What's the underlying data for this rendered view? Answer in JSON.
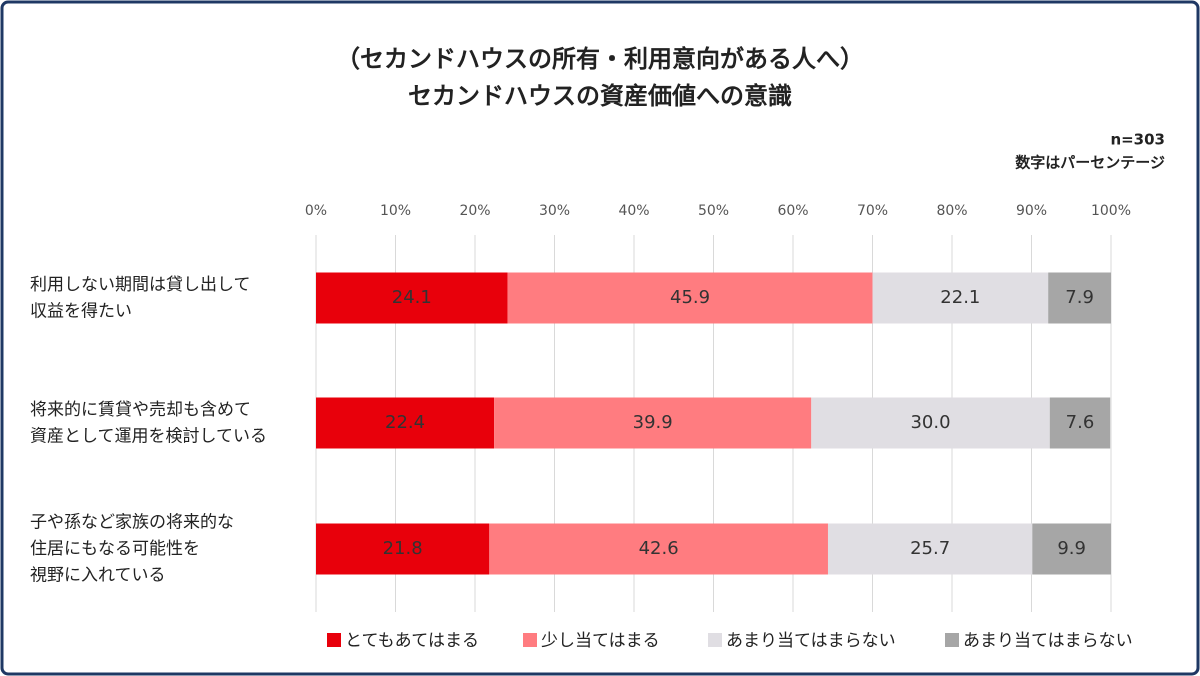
{
  "chart_data": {
    "type": "stacked-bar-horizontal",
    "title": [
      "（セカンドハウスの所有・利用意向がある人へ）",
      "セカンドハウスの資産価値への意識"
    ],
    "subtitle": [
      "n=303",
      "数字はパーセンテージ"
    ],
    "categories": [
      [
        "利用しない期間は貸し出して",
        "収益を得たい"
      ],
      [
        "将来的に賃貸や売却も含めて",
        "資産として運用を検討している"
      ],
      [
        "子や孫など家族の将来的な",
        "住居にもなる可能性を",
        "視野に入れている"
      ]
    ],
    "series": [
      {
        "name": "とてもあてはまる",
        "color": "#e8000b",
        "values": [
          24.1,
          22.4,
          21.8
        ],
        "value_labels": [
          "24.1",
          "22.4",
          "21.8"
        ]
      },
      {
        "name": "少し当てはまる",
        "color": "#ff7c80",
        "values": [
          45.9,
          39.9,
          42.6
        ],
        "value_labels": [
          "45.9",
          "39.9",
          "42.6"
        ]
      },
      {
        "name": "あまり当てはまらない",
        "color": "#e0dee3",
        "values": [
          22.1,
          30.0,
          25.7
        ],
        "value_labels": [
          "22.1",
          "30.0",
          "25.7"
        ]
      },
      {
        "name": "あまり当てはまらない",
        "color": "#a6a6a6",
        "values": [
          7.9,
          7.6,
          9.9
        ],
        "value_labels": [
          "7.9",
          "7.6",
          "9.9"
        ]
      }
    ],
    "xlim": [
      0,
      100
    ],
    "xticks": [
      {
        "value": 0,
        "label": "0%"
      },
      {
        "value": 10,
        "label": "10%"
      },
      {
        "value": 20,
        "label": "20%"
      },
      {
        "value": 30,
        "label": "30%"
      },
      {
        "value": 40,
        "label": "40%"
      },
      {
        "value": 50,
        "label": "50%"
      },
      {
        "value": 60,
        "label": "60%"
      },
      {
        "value": 70,
        "label": "70%"
      },
      {
        "value": 80,
        "label": "80%"
      },
      {
        "value": 90,
        "label": "90%"
      },
      {
        "value": 100,
        "label": "100%"
      }
    ],
    "grid": true,
    "legend": "bottom"
  }
}
